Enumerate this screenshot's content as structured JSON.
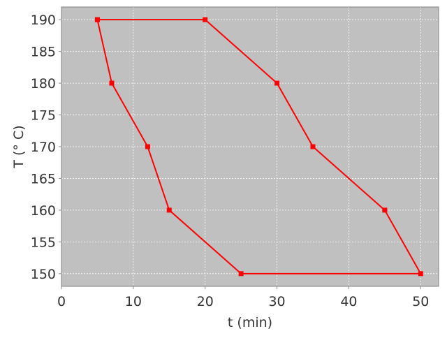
{
  "chart_data": {
    "type": "line",
    "title": "",
    "xlabel": "t (min)",
    "ylabel": "T (° C)",
    "xlim": [
      0,
      52.5
    ],
    "ylim": [
      148,
      192
    ],
    "xticks": [
      0,
      10,
      20,
      30,
      40,
      50
    ],
    "yticks": [
      150,
      155,
      160,
      165,
      170,
      175,
      180,
      185,
      190
    ],
    "grid": true,
    "legend": "none",
    "background_color": "#c0c0c0",
    "series": [
      {
        "color": "#ff0000",
        "marker": "square",
        "x": [
          5,
          20,
          30,
          35,
          45,
          50,
          25,
          15,
          12,
          7,
          5
        ],
        "y": [
          190,
          190,
          180,
          170,
          160,
          150,
          150,
          160,
          170,
          180,
          190
        ]
      }
    ]
  }
}
